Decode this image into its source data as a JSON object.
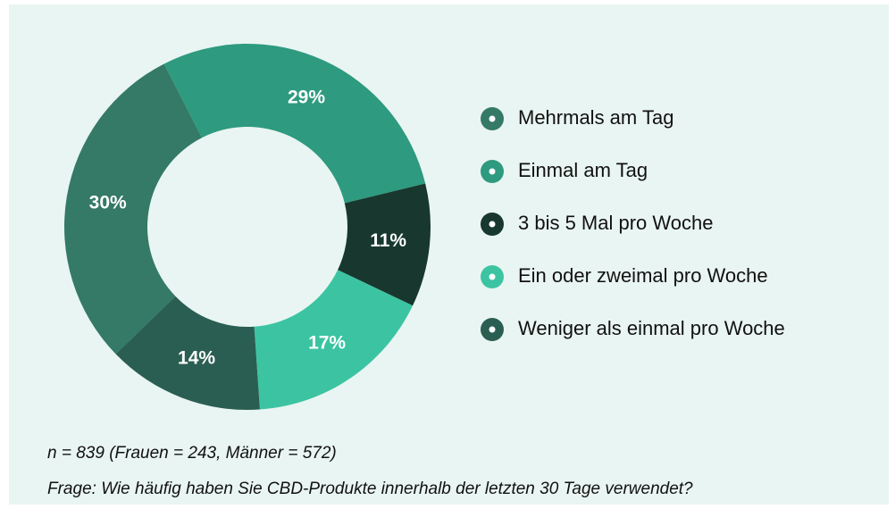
{
  "chart_data": {
    "type": "donut",
    "categories": [
      "Mehrmals am Tag",
      "Einmal am Tag",
      "3 bis 5 Mal pro Woche",
      "Ein oder zweimal pro Woche",
      "Weniger als einmal pro Woche"
    ],
    "values": [
      30,
      29,
      11,
      17,
      14
    ],
    "value_labels": [
      "30%",
      "29%",
      "11%",
      "17%",
      "14%"
    ],
    "colors": [
      "#347a66",
      "#2e9a7f",
      "#17372f",
      "#3cc4a2",
      "#2b5e52"
    ],
    "notes": [
      "n = 839 (Frauen = 243, Männer = 572)",
      "Frage: Wie häufig haben Sie CBD-Produkte innerhalb der letzten 30 Tage verwendet?"
    ]
  }
}
